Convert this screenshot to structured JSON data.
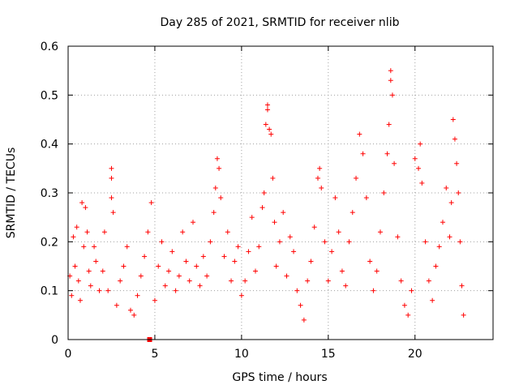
{
  "chart_data": {
    "type": "scatter",
    "title": "Day 285 of 2021, SRMTID for receiver nlib",
    "xlabel": "GPS time / hours",
    "ylabel": "SRMTID / TECUs",
    "xlim": [
      0,
      24.5
    ],
    "ylim": [
      0,
      0.6
    ],
    "xticks": [
      0,
      5,
      10,
      15,
      20
    ],
    "xtick_labels": [
      "0",
      "5",
      "10",
      "15",
      "20"
    ],
    "yticks": [
      0,
      0.1,
      0.2,
      0.3,
      0.4,
      0.5,
      0.6
    ],
    "ytick_labels": [
      "0",
      "0.1",
      "0.2",
      "0.3",
      "0.4",
      "0.5",
      "0.6"
    ],
    "grid": true,
    "marker": "+",
    "color": "#ff0000",
    "special_points": [
      {
        "x": 4.7,
        "y": 0.0,
        "marker": "square"
      }
    ],
    "series": [
      {
        "name": "SRMTID",
        "points": [
          [
            0.1,
            0.13
          ],
          [
            0.2,
            0.09
          ],
          [
            0.3,
            0.21
          ],
          [
            0.4,
            0.15
          ],
          [
            0.5,
            0.23
          ],
          [
            0.6,
            0.12
          ],
          [
            0.7,
            0.08
          ],
          [
            0.8,
            0.28
          ],
          [
            0.9,
            0.19
          ],
          [
            1.0,
            0.27
          ],
          [
            1.1,
            0.22
          ],
          [
            1.2,
            0.14
          ],
          [
            1.3,
            0.11
          ],
          [
            1.5,
            0.19
          ],
          [
            1.6,
            0.16
          ],
          [
            1.8,
            0.1
          ],
          [
            2.0,
            0.14
          ],
          [
            2.1,
            0.22
          ],
          [
            2.3,
            0.1
          ],
          [
            2.5,
            0.35
          ],
          [
            2.5,
            0.33
          ],
          [
            2.5,
            0.29
          ],
          [
            2.6,
            0.26
          ],
          [
            2.8,
            0.07
          ],
          [
            3.0,
            0.12
          ],
          [
            3.2,
            0.15
          ],
          [
            3.4,
            0.19
          ],
          [
            3.6,
            0.06
          ],
          [
            3.8,
            0.05
          ],
          [
            4.0,
            0.09
          ],
          [
            4.2,
            0.13
          ],
          [
            4.4,
            0.17
          ],
          [
            4.6,
            0.22
          ],
          [
            4.8,
            0.28
          ],
          [
            5.0,
            0.08
          ],
          [
            5.2,
            0.15
          ],
          [
            5.4,
            0.2
          ],
          [
            5.6,
            0.11
          ],
          [
            5.8,
            0.14
          ],
          [
            6.0,
            0.18
          ],
          [
            6.2,
            0.1
          ],
          [
            6.4,
            0.13
          ],
          [
            6.6,
            0.22
          ],
          [
            6.8,
            0.16
          ],
          [
            7.0,
            0.12
          ],
          [
            7.2,
            0.24
          ],
          [
            7.4,
            0.15
          ],
          [
            7.6,
            0.11
          ],
          [
            7.8,
            0.17
          ],
          [
            8.0,
            0.13
          ],
          [
            8.2,
            0.2
          ],
          [
            8.4,
            0.26
          ],
          [
            8.5,
            0.31
          ],
          [
            8.6,
            0.37
          ],
          [
            8.7,
            0.35
          ],
          [
            8.8,
            0.29
          ],
          [
            9.0,
            0.17
          ],
          [
            9.2,
            0.22
          ],
          [
            9.4,
            0.12
          ],
          [
            9.6,
            0.16
          ],
          [
            9.8,
            0.19
          ],
          [
            10.0,
            0.09
          ],
          [
            10.2,
            0.12
          ],
          [
            10.4,
            0.18
          ],
          [
            10.6,
            0.25
          ],
          [
            10.8,
            0.14
          ],
          [
            11.0,
            0.19
          ],
          [
            11.2,
            0.27
          ],
          [
            11.3,
            0.3
          ],
          [
            11.4,
            0.44
          ],
          [
            11.5,
            0.48
          ],
          [
            11.5,
            0.47
          ],
          [
            11.6,
            0.43
          ],
          [
            11.7,
            0.42
          ],
          [
            11.8,
            0.33
          ],
          [
            11.9,
            0.24
          ],
          [
            12.0,
            0.15
          ],
          [
            12.2,
            0.2
          ],
          [
            12.4,
            0.26
          ],
          [
            12.6,
            0.13
          ],
          [
            12.8,
            0.21
          ],
          [
            13.0,
            0.18
          ],
          [
            13.2,
            0.1
          ],
          [
            13.4,
            0.07
          ],
          [
            13.6,
            0.04
          ],
          [
            13.8,
            0.12
          ],
          [
            14.0,
            0.16
          ],
          [
            14.2,
            0.23
          ],
          [
            14.4,
            0.33
          ],
          [
            14.5,
            0.35
          ],
          [
            14.6,
            0.31
          ],
          [
            14.8,
            0.2
          ],
          [
            15.0,
            0.12
          ],
          [
            15.2,
            0.18
          ],
          [
            15.4,
            0.29
          ],
          [
            15.6,
            0.22
          ],
          [
            15.8,
            0.14
          ],
          [
            16.0,
            0.11
          ],
          [
            16.2,
            0.2
          ],
          [
            16.4,
            0.26
          ],
          [
            16.6,
            0.33
          ],
          [
            16.8,
            0.42
          ],
          [
            17.0,
            0.38
          ],
          [
            17.2,
            0.29
          ],
          [
            17.4,
            0.16
          ],
          [
            17.6,
            0.1
          ],
          [
            17.8,
            0.14
          ],
          [
            18.0,
            0.22
          ],
          [
            18.2,
            0.3
          ],
          [
            18.4,
            0.38
          ],
          [
            18.5,
            0.44
          ],
          [
            18.6,
            0.55
          ],
          [
            18.6,
            0.53
          ],
          [
            18.7,
            0.5
          ],
          [
            18.8,
            0.36
          ],
          [
            19.0,
            0.21
          ],
          [
            19.2,
            0.12
          ],
          [
            19.4,
            0.07
          ],
          [
            19.6,
            0.05
          ],
          [
            19.8,
            0.1
          ],
          [
            20.0,
            0.37
          ],
          [
            20.2,
            0.35
          ],
          [
            20.3,
            0.4
          ],
          [
            20.4,
            0.32
          ],
          [
            20.6,
            0.2
          ],
          [
            20.8,
            0.12
          ],
          [
            21.0,
            0.08
          ],
          [
            21.2,
            0.15
          ],
          [
            21.4,
            0.19
          ],
          [
            21.6,
            0.24
          ],
          [
            21.8,
            0.31
          ],
          [
            22.0,
            0.21
          ],
          [
            22.1,
            0.28
          ],
          [
            22.2,
            0.45
          ],
          [
            22.3,
            0.41
          ],
          [
            22.4,
            0.36
          ],
          [
            22.5,
            0.3
          ],
          [
            22.6,
            0.2
          ],
          [
            22.7,
            0.11
          ],
          [
            22.8,
            0.05
          ]
        ]
      }
    ]
  }
}
